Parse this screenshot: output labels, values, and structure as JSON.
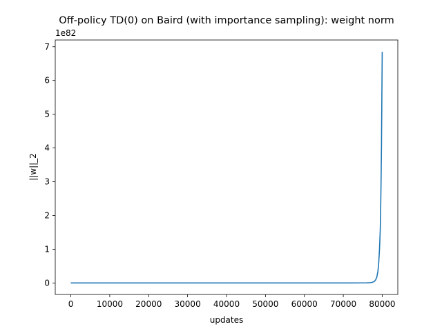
{
  "chart_data": {
    "type": "line",
    "title": "Off-policy TD(0) on Baird (with importance sampling): weight norm",
    "xlabel": "updates",
    "ylabel": "||w||_2",
    "y_offset_label": "1e82",
    "xlim": [
      -4000,
      84000
    ],
    "ylim": [
      -0.34,
      7.2
    ],
    "x_ticks": [
      0,
      10000,
      20000,
      30000,
      40000,
      50000,
      60000,
      70000,
      80000
    ],
    "x_tick_labels": [
      "0",
      "10000",
      "20000",
      "30000",
      "40000",
      "50000",
      "60000",
      "70000",
      "80000"
    ],
    "y_ticks": [
      0,
      1,
      2,
      3,
      4,
      5,
      6,
      7
    ],
    "y_tick_labels": [
      "0",
      "1",
      "2",
      "3",
      "4",
      "5",
      "6",
      "7"
    ],
    "grid": false,
    "series": [
      {
        "color": "#1f77b4",
        "x": [
          0,
          10000,
          20000,
          30000,
          40000,
          50000,
          60000,
          70000,
          75000,
          76000,
          77000,
          77500,
          78000,
          78300,
          78600,
          78900,
          79100,
          79300,
          79500,
          79600,
          79700,
          79800,
          79900,
          80000
        ],
        "y": [
          0,
          0,
          0,
          0,
          0,
          0,
          0,
          0.0005,
          0.002,
          0.004,
          0.01,
          0.02,
          0.05,
          0.09,
          0.17,
          0.35,
          0.6,
          1.0,
          1.6,
          2.2,
          3.0,
          4.0,
          5.4,
          6.85
        ]
      }
    ]
  }
}
